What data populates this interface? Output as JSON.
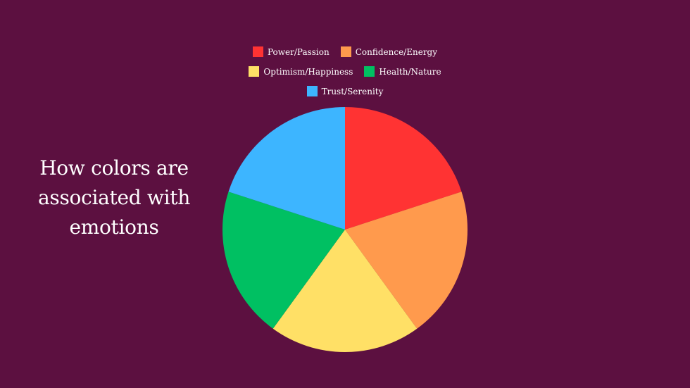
{
  "title": "How colors are associated with emotions",
  "chart_data": {
    "type": "pie",
    "title": "How colors are associated with emotions",
    "legend_position": "top",
    "series": [
      {
        "name": "Power/Passion",
        "value": 20,
        "color": "#ff3333"
      },
      {
        "name": "Confidence/Energy",
        "value": 20,
        "color": "#ff9a4d"
      },
      {
        "name": "Optimism/Happiness",
        "value": 20,
        "color": "#ffe066"
      },
      {
        "name": "Health/Nature",
        "value": 20,
        "color": "#00c062"
      },
      {
        "name": "Trust/Serenity",
        "value": 20,
        "color": "#3db5ff"
      }
    ]
  }
}
